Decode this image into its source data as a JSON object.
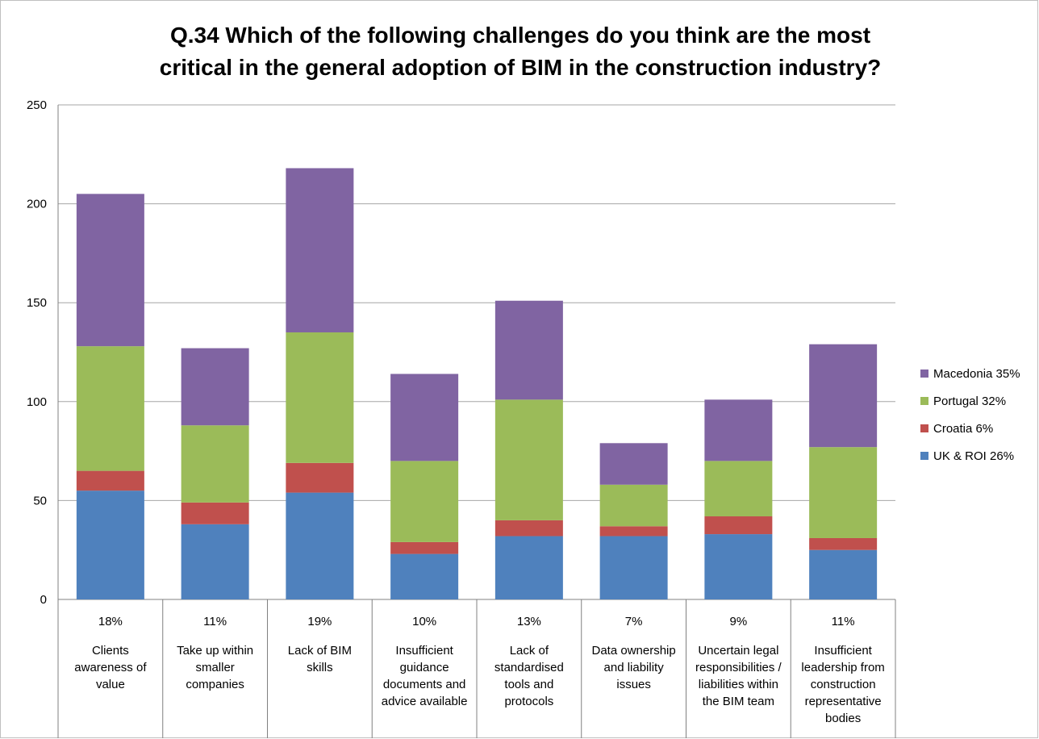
{
  "chart_data": {
    "type": "bar",
    "stacked": true,
    "title": "Q.34 Which of the following challenges do you think are the most critical in the general adoption of BIM in the construction industry?",
    "title_lines": [
      "Q.34 Which of the following challenges do you think are the most",
      "critical in the general adoption of BIM in the construction industry?"
    ],
    "ylim": [
      0,
      250
    ],
    "yticks": [
      "0",
      "50",
      "100",
      "150",
      "200",
      "250"
    ],
    "grid": true,
    "legend_position": "right",
    "categories": [
      {
        "percent": "18%",
        "label_lines": [
          "Clients",
          "awareness of",
          "value"
        ]
      },
      {
        "percent": "11%",
        "label_lines": [
          "Take up within",
          "smaller",
          "companies"
        ]
      },
      {
        "percent": "19%",
        "label_lines": [
          "Lack of BIM",
          "skills"
        ]
      },
      {
        "percent": "10%",
        "label_lines": [
          "Insufficient",
          "guidance",
          "documents and",
          "advice available"
        ]
      },
      {
        "percent": "13%",
        "label_lines": [
          "Lack of",
          "standardised",
          "tools and",
          "protocols"
        ]
      },
      {
        "percent": "7%",
        "label_lines": [
          "Data ownership",
          "and liability",
          "issues"
        ]
      },
      {
        "percent": "9%",
        "label_lines": [
          "Uncertain legal",
          "responsibilities /",
          "liabilities within",
          "the BIM team"
        ]
      },
      {
        "percent": "11%",
        "label_lines": [
          "Insufficient",
          "leadership from",
          "construction",
          "representative",
          "bodies"
        ]
      }
    ],
    "series": [
      {
        "name": "UK & ROI 26%",
        "color": "#4f81bd",
        "values": [
          55,
          38,
          54,
          23,
          32,
          32,
          33,
          25
        ]
      },
      {
        "name": "Croatia 6%",
        "color": "#c0504d",
        "values": [
          10,
          11,
          15,
          6,
          8,
          5,
          9,
          6
        ]
      },
      {
        "name": "Portugal 32%",
        "color": "#9bbb59",
        "values": [
          63,
          39,
          66,
          41,
          61,
          21,
          28,
          46
        ]
      },
      {
        "name": "Macedonia 35%",
        "color": "#8064a2",
        "values": [
          77,
          39,
          83,
          44,
          50,
          21,
          31,
          52
        ]
      }
    ],
    "legend_order": [
      "Macedonia 35%",
      "Portugal 32%",
      "Croatia 6%",
      "UK & ROI 26%"
    ]
  }
}
